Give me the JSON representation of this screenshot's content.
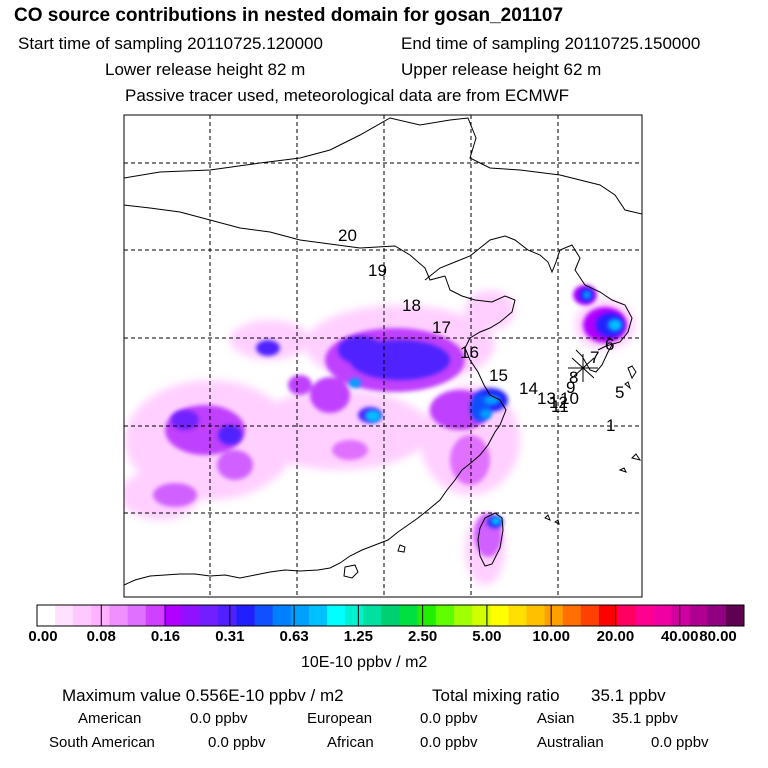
{
  "header": {
    "title": "CO  source contributions in nested domain for gosan_201107",
    "start_time": "Start time of sampling 20110725.120000",
    "end_time": "End time of sampling 20110725.150000",
    "lower_release": "Lower release height   82 m",
    "upper_release": "Upper release height   62 m",
    "tracer_note": "Passive tracer used, meteorological data are from ECMWF"
  },
  "chart_data": {
    "type": "heatmap",
    "title": "CO  source contributions in nested domain for gosan_201107",
    "trajectory_labels": [
      "1",
      "5",
      "6",
      "7",
      "8",
      "9",
      "10",
      "11",
      "12",
      "13",
      "14",
      "15",
      "16",
      "17",
      "18",
      "19",
      "20"
    ],
    "colorbar": {
      "unit": "10E-10 ppbv / m2",
      "tick_labels": [
        "0.00",
        "0.08",
        "0.16",
        "0.31",
        "0.63",
        "1.25",
        "2.50",
        "5.00",
        "10.00",
        "20.00",
        "40.00",
        "80.00"
      ],
      "colors": [
        "#ffffff",
        "#ffe0ff",
        "#ffc8ff",
        "#ffb0ff",
        "#f090ff",
        "#e070ff",
        "#d040ff",
        "#b000ff",
        "#9010ff",
        "#7020ff",
        "#5020ff",
        "#2020ff",
        "#1050ff",
        "#0080ff",
        "#00a0ff",
        "#00c0ff",
        "#00ffff",
        "#00f0d0",
        "#00e0a0",
        "#00d070",
        "#00e040",
        "#20f000",
        "#60ff00",
        "#a0ff00",
        "#d0ff00",
        "#ffff00",
        "#ffe000",
        "#ffc000",
        "#ffa000",
        "#ff7000",
        "#ff4000",
        "#ff0000",
        "#ff0060",
        "#ff0090",
        "#f000a0",
        "#d000a0",
        "#b00090",
        "#900080",
        "#600050"
      ]
    }
  },
  "stats": {
    "maximum": "Maximum value  0.556E-10 ppbv / m2",
    "total_label": "Total mixing ratio",
    "total_value": "35.1 ppbv",
    "american_label": "American",
    "american_value": "0.0 ppbv",
    "european_label": "European",
    "european_value": "0.0 ppbv",
    "asian_label": "Asian",
    "asian_value": "35.1 ppbv",
    "south_american_label": "South American",
    "south_american_value": "0.0 ppbv",
    "african_label": "African",
    "african_value": "0.0 ppbv",
    "australian_label": "Australian",
    "australian_value": "0.0 ppbv"
  }
}
